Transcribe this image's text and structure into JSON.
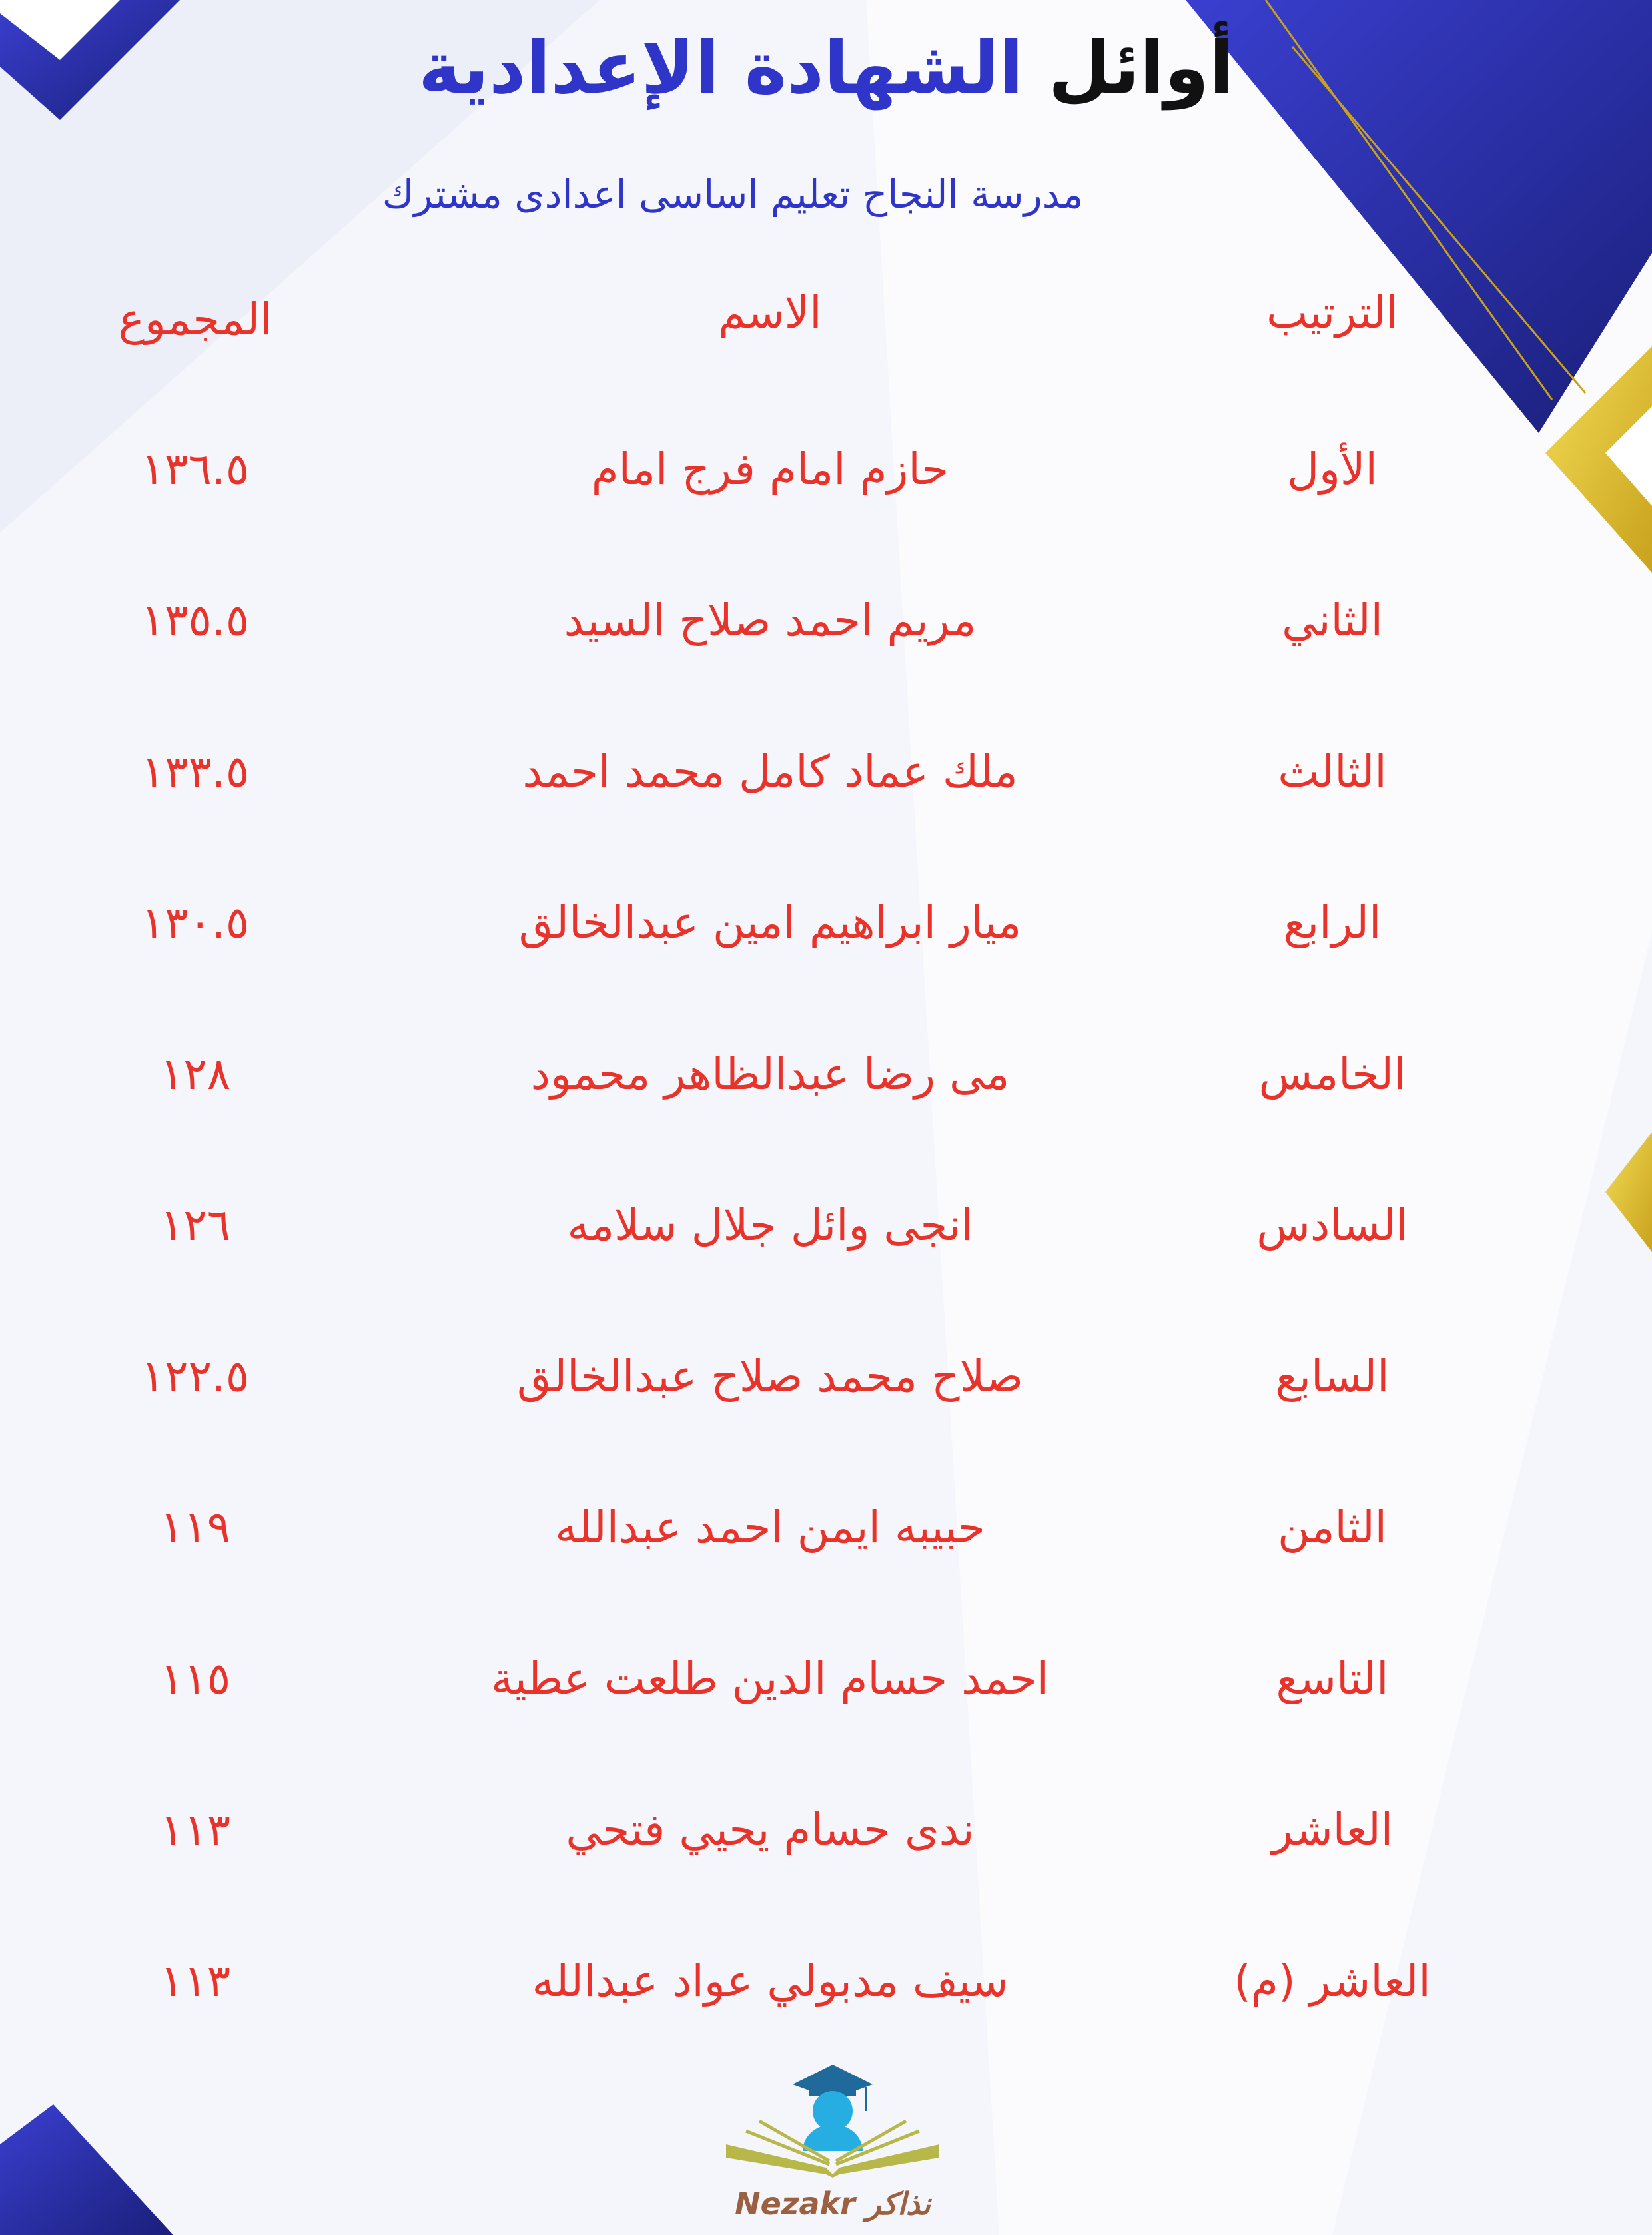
{
  "header": {
    "title_part1": "أوائل",
    "title_part2": "الشهادة الإعدادية",
    "school": "مدرسة النجاح تعليم اساسى اعدادى مشترك"
  },
  "table": {
    "columns": [
      "الترتيب",
      "الاسم",
      "المجموع"
    ],
    "rows": [
      {
        "rank": "الأول",
        "name": "حازم امام فرج امام",
        "total": "١٣٦.٥"
      },
      {
        "rank": "الثاني",
        "name": "مريم احمد صلاح السيد",
        "total": "١٣٥.٥"
      },
      {
        "rank": "الثالث",
        "name": "ملك عماد كامل محمد احمد",
        "total": "١٣٣.٥"
      },
      {
        "rank": "الرابع",
        "name": "ميار ابراهيم امين عبدالخالق",
        "total": "١٣٠.٥"
      },
      {
        "rank": "الخامس",
        "name": "مى رضا عبدالظاهر محمود",
        "total": "١٢٨"
      },
      {
        "rank": "السادس",
        "name": "انجى وائل جلال سلامه",
        "total": "١٢٦"
      },
      {
        "rank": "السابع",
        "name": "صلاح محمد صلاح عبدالخالق",
        "total": "١٢٢.٥"
      },
      {
        "rank": "الثامن",
        "name": "حبيبه ايمن احمد عبدالله",
        "total": "١١٩"
      },
      {
        "rank": "التاسع",
        "name": "احمد حسام الدين طلعت عطية",
        "total": "١١٥"
      },
      {
        "rank": "العاشر",
        "name": "ندى حسام يحيي فتحي",
        "total": "١١٣"
      },
      {
        "rank": "العاشر (م)",
        "name": "سيف مدبولي عواد عبدالله",
        "total": "١١٣"
      }
    ]
  },
  "logo": {
    "text_en": "Nezakr",
    "text_ar": "نذاكر"
  },
  "colors": {
    "title_blue": "#2f35c8",
    "table_red": "#e8322a",
    "accent_gold": "#e8c838"
  }
}
